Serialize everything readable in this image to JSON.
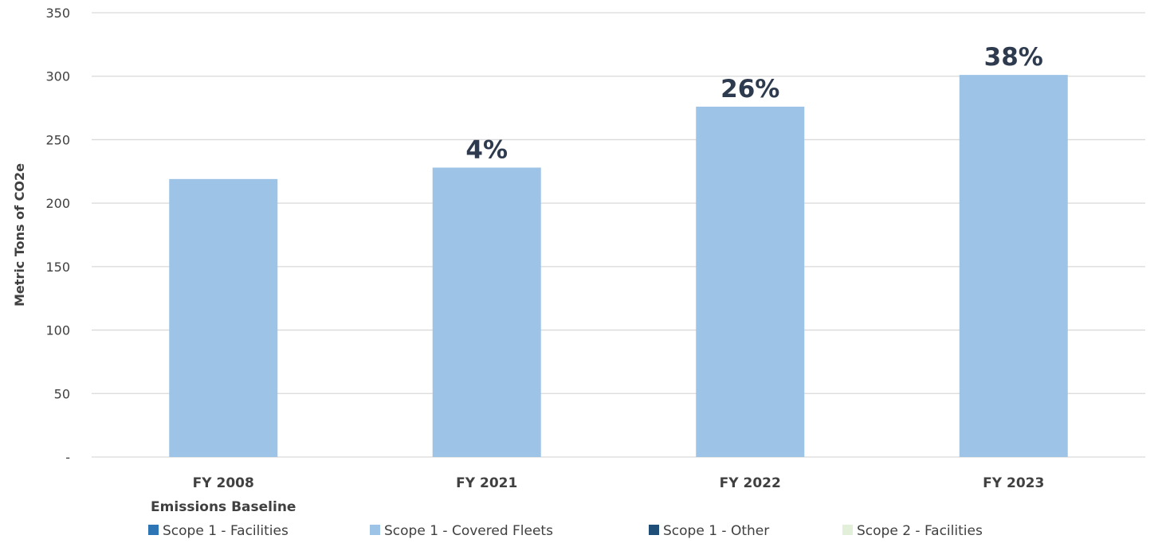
{
  "chart_data": {
    "type": "bar",
    "stacked": true,
    "ylabel": "Metric Tons of CO2e",
    "ylim": [
      0,
      350
    ],
    "yticks": [
      0,
      50,
      100,
      150,
      200,
      250,
      300,
      350
    ],
    "ytick_labels": [
      "-",
      "50",
      "100",
      "150",
      "200",
      "250",
      "300",
      "350"
    ],
    "grid": true,
    "legend_position": "bottom",
    "categories": [
      "FY 2008",
      "FY 2021",
      "FY 2022",
      "FY 2023"
    ],
    "category_sublabels": [
      "Emissions Baseline",
      "",
      "",
      ""
    ],
    "series": [
      {
        "name": "Scope 1 - Facilities",
        "color": "#2e75b6",
        "values": [
          0,
          0,
          0,
          0
        ]
      },
      {
        "name": "Scope 1 - Covered Fleets",
        "color": "#9dc3e6",
        "values": [
          219,
          228,
          276,
          301
        ]
      },
      {
        "name": "Scope 1 - Other",
        "color": "#1f4e79",
        "values": [
          0,
          0,
          0,
          0
        ]
      },
      {
        "name": "Scope 2 - Facilities",
        "color": "#e2f0d9",
        "values": [
          0,
          0,
          0,
          0
        ]
      }
    ],
    "data_labels": [
      "",
      "4%",
      "26%",
      "38%"
    ]
  }
}
